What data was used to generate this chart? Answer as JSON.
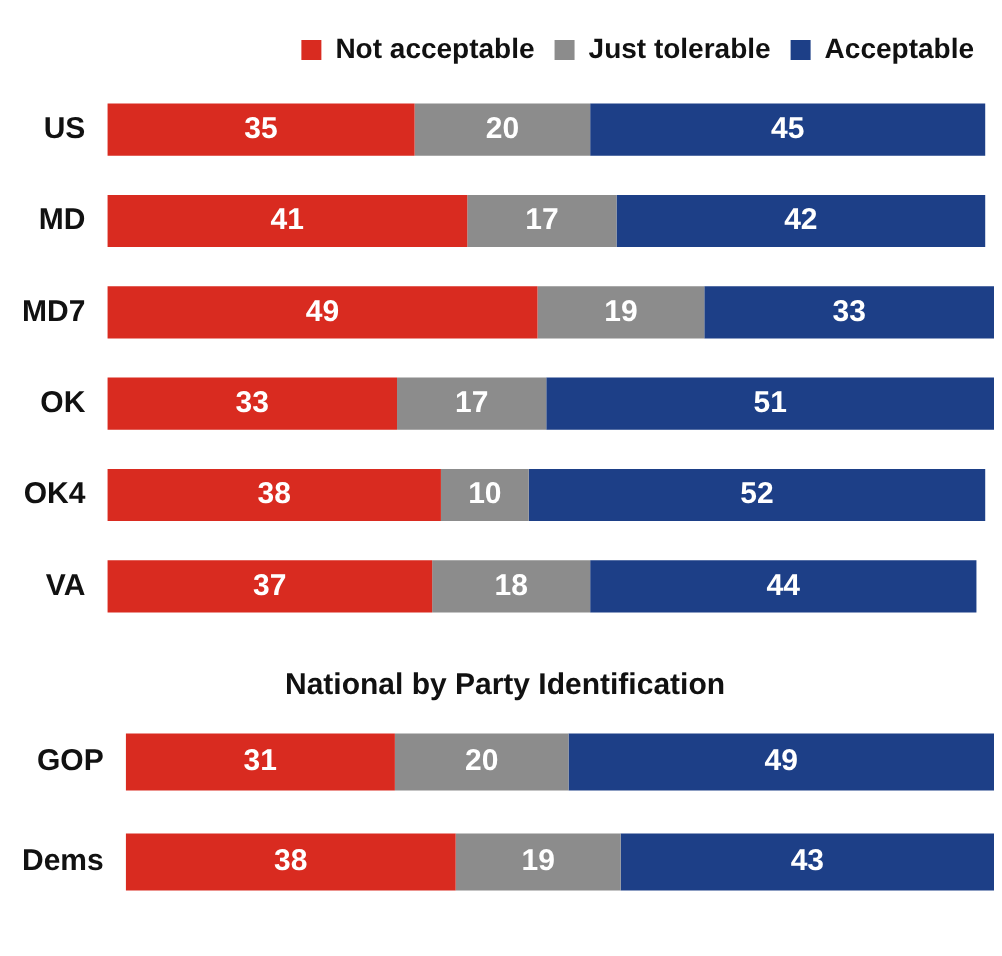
{
  "chart_data": [
    {
      "type": "bar",
      "orientation": "horizontal",
      "stacked": true,
      "categories": [
        "US",
        "MD",
        "MD7",
        "OK",
        "OK4",
        "VA"
      ],
      "legend": "top",
      "data_labels": true,
      "series": [
        {
          "name": "Not acceptable",
          "color": "#d92b20",
          "values": [
            35,
            41,
            49,
            33,
            38,
            37
          ]
        },
        {
          "name": "Just tolerable",
          "color": "#8c8c8c",
          "values": [
            20,
            17,
            19,
            17,
            10,
            18
          ]
        },
        {
          "name": "Acceptable",
          "color": "#1d3f87",
          "values": [
            45,
            42,
            33,
            51,
            52,
            44
          ]
        }
      ]
    },
    {
      "type": "bar",
      "orientation": "horizontal",
      "stacked": true,
      "title": "National by Party Identification",
      "categories": [
        "GOP",
        "Dems"
      ],
      "data_labels": true,
      "series": [
        {
          "color": "#d92b20",
          "values": [
            31,
            38
          ]
        },
        {
          "color": "#8c8c8c",
          "values": [
            20,
            19
          ]
        },
        {
          "color": "#1d3f87",
          "values": [
            49,
            43
          ]
        }
      ]
    }
  ]
}
